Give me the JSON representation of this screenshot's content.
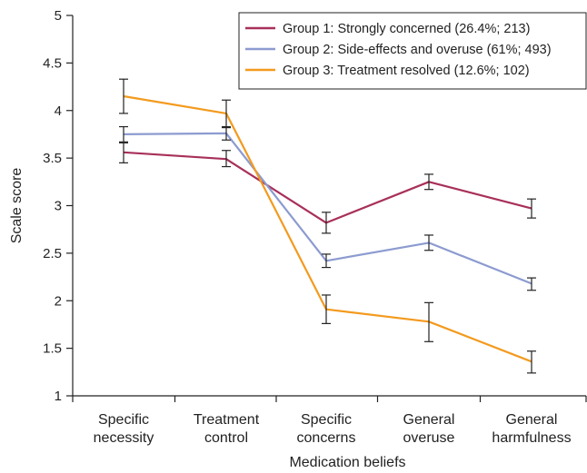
{
  "chart_data": {
    "type": "line",
    "title": "",
    "xlabel": "Medication beliefs",
    "ylabel": "Scale score",
    "ylim": [
      1,
      5
    ],
    "yticks": [
      "1",
      "1.5",
      "2",
      "2.5",
      "3",
      "3.5",
      "4",
      "4.5",
      "5"
    ],
    "categories": [
      [
        "Specific",
        "necessity"
      ],
      [
        "Treatment",
        "control"
      ],
      [
        "Specific",
        "concerns"
      ],
      [
        "General",
        "overuse"
      ],
      [
        "General",
        "harmfulness"
      ]
    ],
    "legend_position": "top-right",
    "grid": false,
    "series": [
      {
        "name": "Group 1: Strongly concerned (26.4%; 213)",
        "color": "#a8305a",
        "values": [
          3.56,
          3.49,
          2.82,
          3.25,
          2.97
        ],
        "err_low": [
          3.45,
          3.41,
          2.71,
          3.17,
          2.87
        ],
        "err_high": [
          3.66,
          3.58,
          2.93,
          3.33,
          3.07
        ]
      },
      {
        "name": "Group 2: Side-effects and overuse (61%; 493)",
        "color": "#8c9bd0",
        "values": [
          3.75,
          3.76,
          2.42,
          2.61,
          2.18
        ],
        "err_low": [
          3.67,
          3.69,
          2.35,
          2.53,
          2.11
        ],
        "err_high": [
          3.83,
          3.83,
          2.49,
          2.69,
          2.24
        ]
      },
      {
        "name": "Group 3: Treatment resolved (12.6%; 102)",
        "color": "#f39a1e",
        "values": [
          4.15,
          3.97,
          1.91,
          1.78,
          1.36
        ],
        "err_low": [
          3.97,
          3.82,
          1.76,
          1.57,
          1.24
        ],
        "err_high": [
          4.33,
          4.11,
          2.06,
          1.98,
          1.47
        ]
      }
    ]
  }
}
